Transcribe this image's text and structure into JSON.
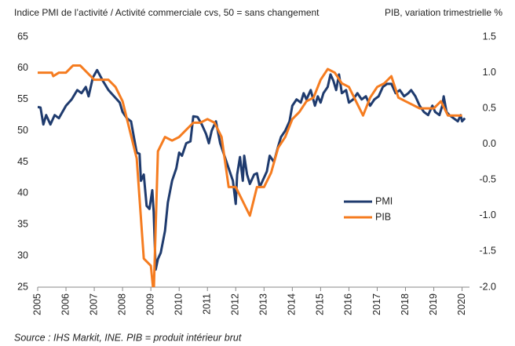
{
  "chart_data": {
    "type": "line",
    "title_left": "Indice PMI de l’activité / Activité commerciale cvs, 50 = sans changement",
    "title_right": "PIB, variation trimestrielle %",
    "source": "Source : IHS Markit, INE. PIB = produit intérieur brut",
    "xlim": [
      2005,
      2020.15
    ],
    "xticks": [
      2005,
      2006,
      2007,
      2008,
      2009,
      2010,
      2011,
      2012,
      2013,
      2014,
      2015,
      2016,
      2017,
      2018,
      2019,
      2020
    ],
    "ylim": [
      25,
      65
    ],
    "yticks": [
      25,
      30,
      35,
      40,
      45,
      50,
      55,
      60,
      65
    ],
    "y2lim": [
      -2,
      1.5
    ],
    "y2ticks": [
      {
        "value": -2,
        "label": "-2.0"
      },
      -1.5,
      {
        "value": -1,
        "label": "-1.0"
      },
      -0.5,
      {
        "value": 0,
        "label": "0.0"
      },
      0.5,
      {
        "value": 1,
        "label": "1.0"
      },
      1.5
    ],
    "legend": "inside-lower-right",
    "series": [
      {
        "name": "PMI",
        "color": "#1f3b6e",
        "axis": "y",
        "x": [
          2005.0,
          2005.1,
          2005.2,
          2005.3,
          2005.45,
          2005.6,
          2005.75,
          2006.0,
          2006.2,
          2006.4,
          2006.55,
          2006.7,
          2006.8,
          2006.95,
          2007.1,
          2007.3,
          2007.5,
          2007.7,
          2007.9,
          2008.0,
          2008.15,
          2008.3,
          2008.4,
          2008.5,
          2008.6,
          2008.65,
          2008.75,
          2008.85,
          2008.95,
          2009.05,
          2009.1,
          2009.17,
          2009.25,
          2009.35,
          2009.5,
          2009.6,
          2009.75,
          2009.9,
          2010.0,
          2010.1,
          2010.25,
          2010.4,
          2010.5,
          2010.65,
          2010.8,
          2010.95,
          2011.05,
          2011.15,
          2011.3,
          2011.45,
          2011.6,
          2011.75,
          2011.9,
          2012.0,
          2012.05,
          2012.15,
          2012.25,
          2012.3,
          2012.4,
          2012.5,
          2012.65,
          2012.75,
          2012.85,
          2012.95,
          2013.1,
          2013.2,
          2013.35,
          2013.5,
          2013.6,
          2013.75,
          2013.9,
          2014.0,
          2014.15,
          2014.3,
          2014.4,
          2014.5,
          2014.65,
          2014.8,
          2014.9,
          2015.0,
          2015.1,
          2015.25,
          2015.35,
          2015.45,
          2015.55,
          2015.65,
          2015.75,
          2015.9,
          2016.0,
          2016.15,
          2016.3,
          2016.45,
          2016.6,
          2016.75,
          2016.9,
          2017.05,
          2017.2,
          2017.35,
          2017.5,
          2017.65,
          2017.8,
          2017.95,
          2018.1,
          2018.2,
          2018.35,
          2018.5,
          2018.65,
          2018.8,
          2018.95,
          2019.05,
          2019.2,
          2019.3,
          2019.35,
          2019.45,
          2019.55,
          2019.7,
          2019.85,
          2019.95,
          2020.0,
          2020.1
        ],
        "values": [
          53.8,
          53.7,
          51,
          52.5,
          51,
          52.5,
          52,
          54,
          55,
          56.5,
          56,
          57,
          55.5,
          58.5,
          59.7,
          58,
          56.5,
          55.5,
          54.5,
          53,
          52,
          51.5,
          49,
          46.5,
          46.3,
          42,
          43,
          38,
          37.5,
          40.5,
          37,
          27.8,
          29.5,
          30.5,
          34,
          38.5,
          42,
          44,
          46.5,
          46,
          48,
          48.3,
          52.3,
          52.2,
          51,
          49.5,
          48,
          50,
          51.5,
          48,
          46,
          44,
          42,
          38.3,
          43,
          45.8,
          42,
          46,
          43,
          41.5,
          43,
          43.2,
          41,
          42,
          43.5,
          46,
          45,
          47.5,
          49,
          50,
          51.5,
          54,
          55,
          54.5,
          56,
          55,
          56.5,
          54,
          55.5,
          54.5,
          56,
          57,
          59,
          58,
          56.5,
          59,
          56,
          56.5,
          54.5,
          55,
          56,
          55,
          55.5,
          54,
          55,
          55.5,
          57,
          57.5,
          57.5,
          56,
          56.5,
          55.5,
          56,
          56.5,
          55.5,
          54,
          53,
          52.5,
          54,
          53,
          52.5,
          54,
          55.5,
          53,
          52.5,
          52,
          51.5,
          52.5,
          51.5,
          52
        ]
      },
      {
        "name": "PIB",
        "color": "#f57c20",
        "axis": "y2",
        "x": [
          2005.0,
          2005.5,
          2005.55,
          2005.75,
          2006.0,
          2006.25,
          2006.5,
          2006.75,
          2007.0,
          2007.25,
          2007.5,
          2007.75,
          2008.0,
          2008.25,
          2008.5,
          2008.75,
          2009.0,
          2009.1,
          2009.25,
          2009.5,
          2009.75,
          2010.0,
          2010.25,
          2010.5,
          2010.75,
          2011.0,
          2011.25,
          2011.5,
          2011.75,
          2012.0,
          2012.25,
          2012.5,
          2012.75,
          2013.0,
          2013.25,
          2013.5,
          2013.75,
          2014.0,
          2014.25,
          2014.5,
          2014.75,
          2015.0,
          2015.25,
          2015.5,
          2015.75,
          2016.0,
          2016.25,
          2016.5,
          2016.75,
          2017.0,
          2017.25,
          2017.5,
          2017.75,
          2018.0,
          2018.25,
          2018.5,
          2018.75,
          2019.0,
          2019.25,
          2019.5,
          2019.75,
          2020.0
        ],
        "values": [
          1.0,
          1.0,
          0.95,
          1.0,
          1.0,
          1.1,
          1.1,
          1.0,
          0.9,
          0.9,
          0.9,
          0.8,
          0.6,
          0.2,
          -0.2,
          -1.6,
          -1.7,
          -2.1,
          -0.1,
          0.1,
          0.05,
          0.1,
          0.2,
          0.3,
          0.3,
          0.35,
          0.3,
          0.1,
          -0.6,
          -0.6,
          -0.8,
          -1.0,
          -0.6,
          -0.6,
          -0.4,
          -0.05,
          0.1,
          0.35,
          0.45,
          0.6,
          0.65,
          0.9,
          1.05,
          1.0,
          0.85,
          0.8,
          0.6,
          0.4,
          0.65,
          0.8,
          0.85,
          0.95,
          0.65,
          0.6,
          0.55,
          0.5,
          0.5,
          0.5,
          0.6,
          0.4,
          0.4,
          0.4
        ]
      }
    ]
  }
}
